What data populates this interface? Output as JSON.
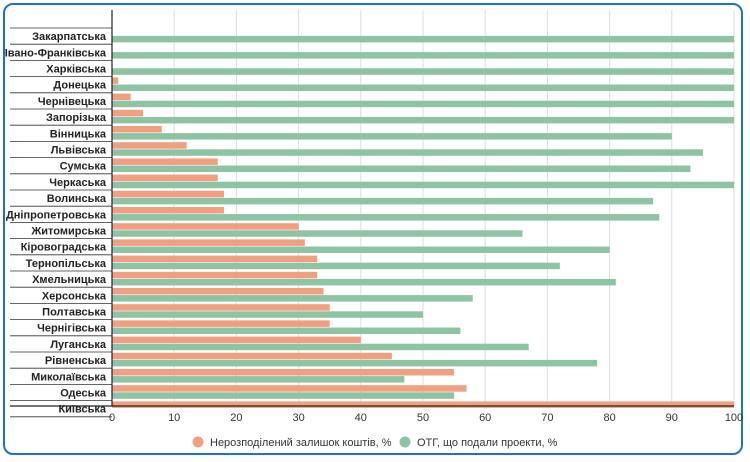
{
  "chart_data": {
    "type": "bar",
    "orientation": "horizontal",
    "categories": [
      "Закарпатська",
      "Івано-Франківська",
      "Харківська",
      "Донецька",
      "Чернівецька",
      "Запорізька",
      "Вінницька",
      "Львівська",
      "Сумська",
      "Черкаська",
      "Волинська",
      "Дніпропетровська",
      "Житомирська",
      "Кіровоградська",
      "Тернопільська",
      "Хмельницька",
      "Херсонська",
      "Полтавська",
      "Чернігівська",
      "Луганська",
      "Рівненська",
      "Миколаївська",
      "Одеська",
      "Київська"
    ],
    "series": [
      {
        "name": "Нерозподілений залишок коштів, %",
        "color": "#f0a080",
        "values": [
          0,
          0,
          0,
          1,
          3,
          5,
          8,
          12,
          17,
          17,
          18,
          18,
          30,
          31,
          33,
          33,
          34,
          35,
          35,
          40,
          45,
          55,
          57,
          100
        ]
      },
      {
        "name": "ОТГ, що подали проекти, %",
        "color": "#8ec4a4",
        "values": [
          100,
          100,
          100,
          100,
          100,
          100,
          90,
          95,
          93,
          100,
          87,
          88,
          66,
          80,
          72,
          81,
          58,
          50,
          56,
          67,
          78,
          47,
          55,
          0
        ]
      }
    ],
    "xlim": [
      0,
      100
    ],
    "xticks": [
      "0",
      "10",
      "20",
      "30",
      "40",
      "50",
      "60",
      "70",
      "80",
      "90",
      "100"
    ],
    "grid": true,
    "legend_position": "bottom"
  }
}
